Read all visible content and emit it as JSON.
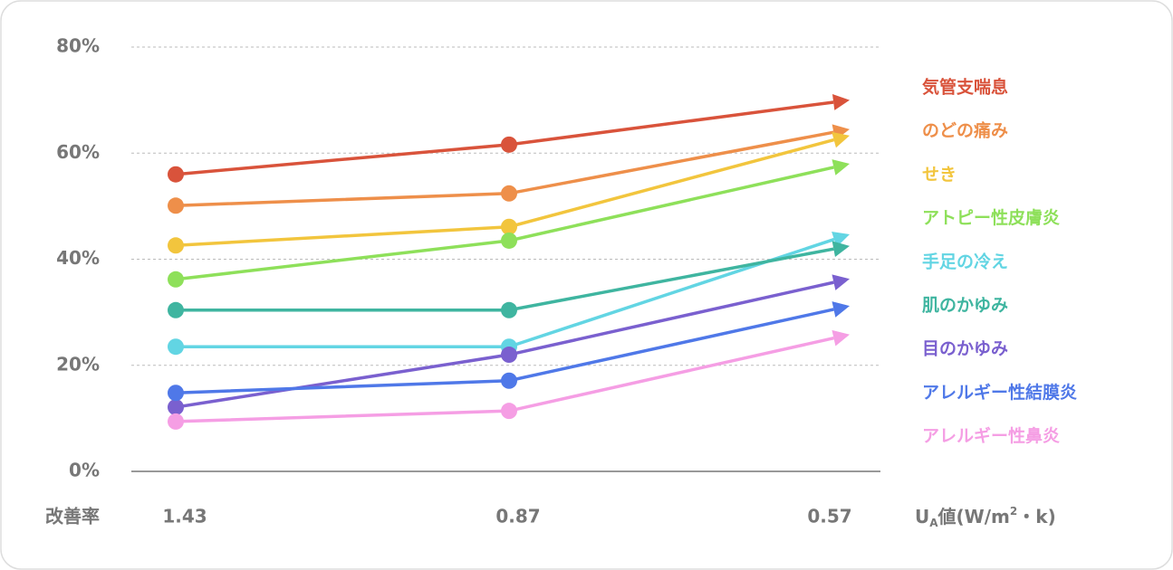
{
  "chart_data": {
    "type": "line",
    "categories": [
      "1.43",
      "0.87",
      "0.57"
    ],
    "y_label": "改善率",
    "x_label": [
      "U",
      "A",
      "値(W/m",
      "2",
      "・k)"
    ],
    "ylim": [
      0,
      80
    ],
    "yticks": [
      {
        "value": 0,
        "label": "0%"
      },
      {
        "value": 20,
        "label": "20%"
      },
      {
        "value": 40,
        "label": "40%"
      },
      {
        "value": 60,
        "label": "60%"
      },
      {
        "value": 80,
        "label": "80%"
      }
    ],
    "grid": true,
    "series": [
      {
        "name": "気管支喘息",
        "color": "#d9533b",
        "values": [
          56,
          61.6,
          70
        ]
      },
      {
        "name": "のどの痛み",
        "color": "#ee8f4a",
        "values": [
          50.1,
          52.4,
          64.5
        ]
      },
      {
        "name": "せき",
        "color": "#f2c53d",
        "values": [
          42.6,
          46.1,
          63.3
        ]
      },
      {
        "name": "アトピー性皮膚炎",
        "color": "#8ee05a",
        "values": [
          36.2,
          43.5,
          58
        ]
      },
      {
        "name": "手足の冷え",
        "color": "#62d5e3",
        "values": [
          23.5,
          23.5,
          44.7
        ]
      },
      {
        "name": "肌のかゆみ",
        "color": "#3fb5a0",
        "values": [
          30.4,
          30.4,
          42.5
        ]
      },
      {
        "name": "目のかゆみ",
        "color": "#7a60cf",
        "values": [
          12.1,
          22,
          36.3
        ]
      },
      {
        "name": "アレルギー性結膜炎",
        "color": "#4f78e8",
        "values": [
          14.8,
          17.1,
          31.2
        ]
      },
      {
        "name": "アレルギー性鼻炎",
        "color": "#f59ee4",
        "values": [
          9.4,
          11.4,
          25.8
        ]
      }
    ]
  }
}
